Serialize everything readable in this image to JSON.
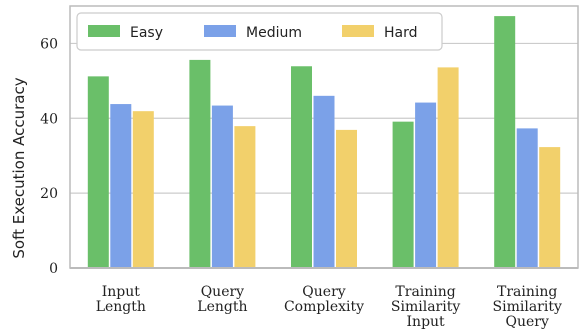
{
  "chart_data": {
    "type": "bar",
    "categories": [
      [
        "Input",
        "Length"
      ],
      [
        "Query",
        "Length"
      ],
      [
        "Query",
        "Complexity"
      ],
      [
        "Training",
        "Similarity",
        "Input"
      ],
      [
        "Training",
        "Similarity",
        "Query"
      ]
    ],
    "series": [
      {
        "name": "Easy",
        "color": "#6abf69",
        "values": [
          51.2,
          55.6,
          53.9,
          39.1,
          67.3
        ]
      },
      {
        "name": "Medium",
        "color": "#7ba1e8",
        "values": [
          43.8,
          43.4,
          46.0,
          44.2,
          37.3
        ]
      },
      {
        "name": "Hard",
        "color": "#f2d06b",
        "values": [
          41.9,
          37.9,
          36.9,
          53.6,
          32.3
        ]
      }
    ],
    "ylabel": "Soft Execution Accuracy",
    "ylim": [
      0,
      70
    ],
    "yticks": [
      0,
      20,
      40,
      60
    ],
    "grid": true,
    "legend_position": "top"
  }
}
